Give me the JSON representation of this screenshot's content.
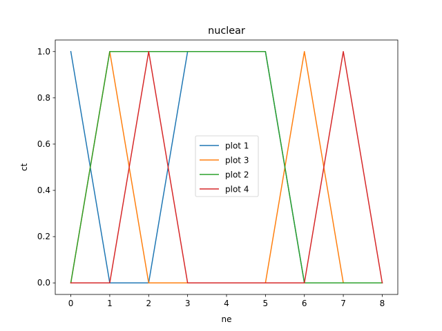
{
  "chart_data": {
    "type": "line",
    "title": "nuclear",
    "xlabel": "ne",
    "ylabel": "ct",
    "xlim": [
      -0.4,
      8.4
    ],
    "ylim": [
      -0.05,
      1.05
    ],
    "xticks": [
      0,
      1,
      2,
      3,
      4,
      5,
      6,
      7,
      8
    ],
    "yticks": [
      0.0,
      0.2,
      0.4,
      0.6,
      0.8,
      1.0
    ],
    "xtick_labels": [
      "0",
      "1",
      "2",
      "3",
      "4",
      "5",
      "6",
      "7",
      "8"
    ],
    "ytick_labels": [
      "0.0",
      "0.2",
      "0.4",
      "0.6",
      "0.8",
      "1.0"
    ],
    "grid": false,
    "legend_position": "center",
    "series": [
      {
        "name": "plot 1",
        "color": "#1f77b4",
        "x": [
          0,
          1,
          2,
          3,
          4,
          5,
          6,
          7,
          8
        ],
        "y": [
          1,
          0,
          0,
          1,
          1,
          1,
          0,
          0,
          0
        ]
      },
      {
        "name": "plot 3",
        "color": "#ff7f0e",
        "x": [
          0,
          1,
          2,
          3,
          4,
          5,
          6,
          7,
          8
        ],
        "y": [
          0,
          1,
          0,
          0,
          0,
          0,
          1,
          0,
          0
        ]
      },
      {
        "name": "plot 2",
        "color": "#2ca02c",
        "x": [
          0,
          1,
          2,
          3,
          4,
          5,
          6,
          7,
          8
        ],
        "y": [
          0,
          1,
          1,
          1,
          1,
          1,
          0,
          0,
          0
        ]
      },
      {
        "name": "plot 4",
        "color": "#d62728",
        "x": [
          0,
          1,
          2,
          3,
          4,
          5,
          6,
          7,
          8
        ],
        "y": [
          0,
          0,
          1,
          0,
          0,
          0,
          0,
          1,
          0
        ]
      }
    ]
  }
}
